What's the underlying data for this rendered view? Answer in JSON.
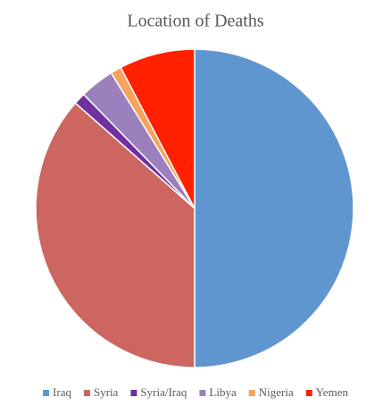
{
  "chart_data": {
    "type": "pie",
    "title": "Location of Deaths",
    "categories": [
      "Iraq",
      "Syria",
      "Syria/Iraq",
      "Libya",
      "Nigeria",
      "Yemen"
    ],
    "values": [
      50,
      36.5,
      1.2,
      3.5,
      1.1,
      7.7
    ],
    "colors": [
      "#6096cf",
      "#cd6560",
      "#7030a0",
      "#9a80bd",
      "#f7a35c",
      "#ff2000"
    ],
    "legend": "bottom"
  }
}
